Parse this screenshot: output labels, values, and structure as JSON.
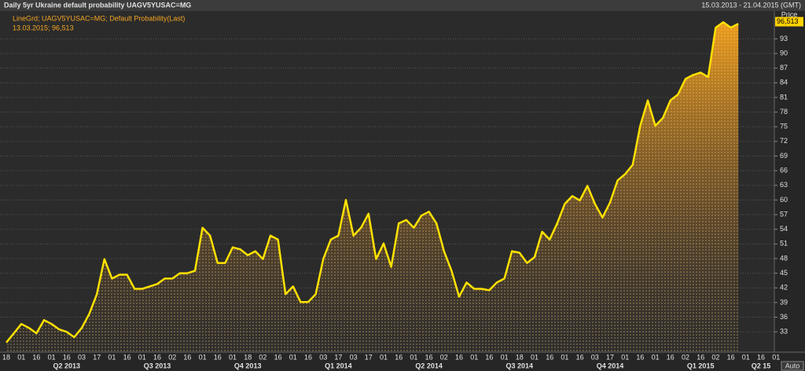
{
  "chart_data": {
    "type": "line",
    "title": "Daily 5yr Ukraine default probability UAGV5YUSAC=MG",
    "date_range": "15.03.2013 - 21.04.2015 (GMT)",
    "y_axis_label": "Price",
    "cursor_label": "13.03.2015; 96,513",
    "button": "Auto",
    "categories": [
      "18",
      null,
      "01",
      null,
      "16",
      null,
      "01",
      null,
      "16",
      null,
      "03",
      null,
      "17",
      null,
      "01",
      null,
      "16",
      null,
      "01",
      null,
      "16",
      null,
      "02",
      null,
      "16",
      null,
      "01",
      null,
      "16",
      null,
      "01",
      null,
      "18",
      null,
      "02",
      null,
      "16",
      null,
      "01",
      null,
      "16",
      null,
      "03",
      null,
      "17",
      null,
      "03",
      null,
      "17",
      null,
      "01",
      null,
      "16",
      null,
      "01",
      null,
      "16",
      null,
      "02",
      null,
      "16",
      null,
      "01",
      null,
      "16",
      null,
      "01",
      null,
      "18",
      null,
      "01",
      null,
      "16",
      null,
      "01",
      null,
      "16",
      null,
      "03",
      null,
      "17",
      null,
      "01",
      null,
      "16",
      null,
      "01",
      null,
      "16",
      null,
      "02",
      null,
      "16",
      null,
      "02",
      null,
      "16",
      null,
      "01",
      null,
      "16",
      null,
      "01"
    ],
    "quarter_labels": [
      null,
      null,
      null,
      null,
      null,
      null,
      null,
      null,
      "Q2 2013",
      null,
      null,
      null,
      null,
      null,
      null,
      null,
      null,
      null,
      null,
      null,
      "Q3 2013",
      null,
      null,
      null,
      null,
      null,
      null,
      null,
      null,
      null,
      null,
      null,
      "Q4 2013",
      null,
      null,
      null,
      null,
      null,
      null,
      null,
      null,
      null,
      null,
      null,
      "Q1 2014",
      null,
      null,
      null,
      null,
      null,
      null,
      null,
      null,
      null,
      null,
      null,
      "Q2 2014",
      null,
      null,
      null,
      null,
      null,
      null,
      null,
      null,
      null,
      null,
      null,
      "Q3 2014",
      null,
      null,
      null,
      null,
      null,
      null,
      null,
      null,
      null,
      null,
      null,
      "Q4 2014",
      null,
      null,
      null,
      null,
      null,
      null,
      null,
      null,
      null,
      null,
      null,
      "Q1 2015",
      null,
      null,
      null,
      null,
      null,
      null,
      null,
      "Q2 15",
      null,
      null,
      null,
      null
    ],
    "series": [
      {
        "name": "LineGrd; UAGV5YUSAC=MG; Default Probability(Last)",
        "color": "#ffe100",
        "values": [
          30.8,
          32.7,
          34.6,
          33.8,
          32.7,
          35.4,
          34.6,
          33.5,
          33,
          31.9,
          33.8,
          36.7,
          40.7,
          47.9,
          43.9,
          44.7,
          44.7,
          41.8,
          41.8,
          42.3,
          42.8,
          43.9,
          43.9,
          45,
          45,
          45.5,
          54.3,
          52.7,
          47.1,
          47.1,
          50.3,
          49.9,
          48.7,
          49.5,
          47.9,
          52.7,
          51.9,
          40.7,
          42.3,
          39.1,
          39.1,
          40.7,
          47.9,
          51.9,
          52.7,
          60,
          52.7,
          54.3,
          57.2,
          47.9,
          51.1,
          46.3,
          55.2,
          55.9,
          54.3,
          56.8,
          57.6,
          55.2,
          49.5,
          45.5,
          40.2,
          43.1,
          41.8,
          41.8,
          41.5,
          43.1,
          43.9,
          49.5,
          49.2,
          47.1,
          48.3,
          53.5,
          51.9,
          55.2,
          59.2,
          60.8,
          59.9,
          62.9,
          59.2,
          56.4,
          59.5,
          64,
          65.3,
          67.2,
          75.2,
          80.4,
          75.2,
          76.8,
          80.4,
          81.6,
          84.8,
          85.6,
          86.1,
          85.2,
          95.3,
          96.4,
          95.3,
          96.1,
          null,
          null,
          null,
          null,
          null
        ]
      }
    ],
    "last_value": {
      "value": 96.513,
      "label": "96,513"
    },
    "ylim": [
      29,
      98.7
    ],
    "yticks": [
      33,
      36,
      39,
      42,
      45,
      48,
      51,
      54,
      57,
      60,
      63,
      66,
      69,
      72,
      75,
      78,
      81,
      84,
      87,
      90,
      93
    ],
    "grid": true
  }
}
